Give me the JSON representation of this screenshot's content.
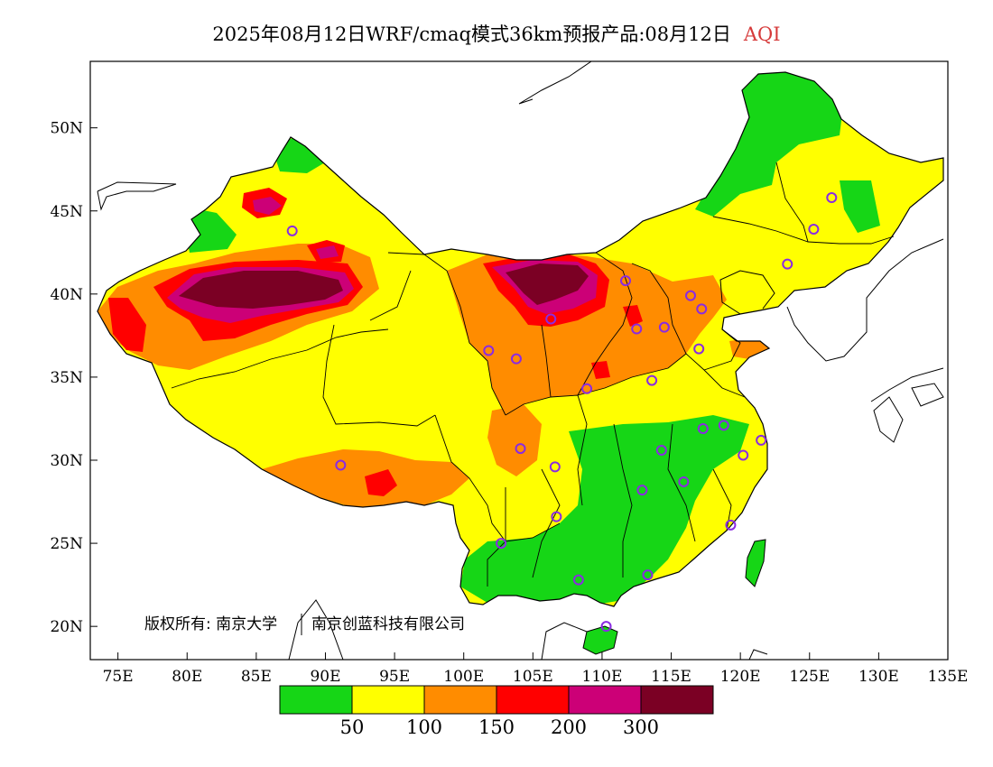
{
  "title": {
    "main": "2025年08月12日WRF/cmaq模式36km预报产品:08月12日",
    "variable": "AQI",
    "variable_color": "#d63a3a"
  },
  "credit": {
    "left": "版权所有: 南京大学",
    "right": "南京创蓝科技有限公司"
  },
  "axes": {
    "lat_ticks": [
      "50N",
      "45N",
      "40N",
      "35N",
      "30N",
      "25N",
      "20N"
    ],
    "lon_ticks": [
      "75E",
      "80E",
      "85E",
      "90E",
      "95E",
      "100E",
      "105E",
      "110E",
      "115E",
      "120E",
      "125E",
      "130E",
      "135E"
    ],
    "lon_range": [
      73,
      135
    ],
    "lat_range": [
      18,
      54
    ]
  },
  "legend": {
    "colors": [
      "#16d616",
      "#ffff00",
      "#ff8c00",
      "#ff0000",
      "#cc0077",
      "#7b0024"
    ],
    "labels": [
      "50",
      "100",
      "150",
      "200",
      "300"
    ]
  },
  "stations": [
    [
      87.6,
      43.8
    ],
    [
      126.6,
      45.8
    ],
    [
      125.3,
      43.9
    ],
    [
      123.4,
      41.8
    ],
    [
      111.7,
      40.8
    ],
    [
      116.4,
      39.9
    ],
    [
      117.2,
      39.1
    ],
    [
      114.5,
      38.0
    ],
    [
      112.5,
      37.9
    ],
    [
      106.3,
      38.5
    ],
    [
      103.8,
      36.1
    ],
    [
      101.8,
      36.6
    ],
    [
      108.9,
      34.3
    ],
    [
      113.6,
      34.8
    ],
    [
      117.0,
      36.7
    ],
    [
      117.3,
      31.9
    ],
    [
      118.8,
      32.1
    ],
    [
      120.2,
      30.3
    ],
    [
      121.5,
      31.2
    ],
    [
      114.3,
      30.6
    ],
    [
      112.9,
      28.2
    ],
    [
      115.9,
      28.7
    ],
    [
      119.3,
      26.1
    ],
    [
      106.6,
      29.6
    ],
    [
      104.1,
      30.7
    ],
    [
      91.1,
      29.7
    ],
    [
      106.7,
      26.6
    ],
    [
      102.7,
      25.0
    ],
    [
      108.3,
      22.8
    ],
    [
      113.3,
      23.1
    ],
    [
      110.3,
      20.0
    ]
  ]
}
